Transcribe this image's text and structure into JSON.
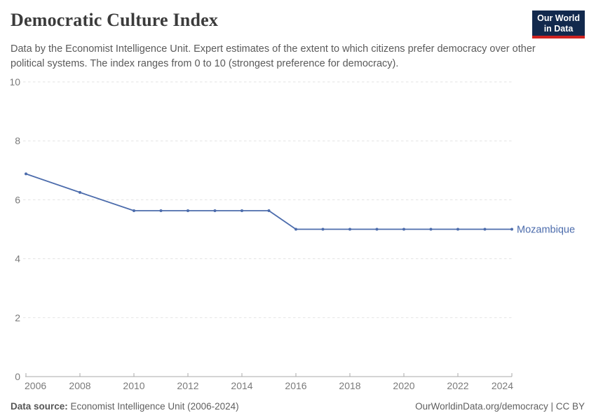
{
  "header": {
    "title": "Democratic Culture Index",
    "subtitle": "Data by the Economist Intelligence Unit. Expert estimates of the extent to which citizens prefer democracy over other political systems. The index ranges from 0 to 10 (strongest preference for democracy).",
    "logo_line1": "Our World",
    "logo_line2": "in Data"
  },
  "chart_data": {
    "type": "line",
    "title": "Democratic Culture Index",
    "xlabel": "",
    "ylabel": "",
    "xlim": [
      2006,
      2024
    ],
    "ylim": [
      0,
      10
    ],
    "x_ticks": [
      2006,
      2008,
      2010,
      2012,
      2014,
      2016,
      2018,
      2020,
      2022,
      2024
    ],
    "y_ticks": [
      0,
      2,
      4,
      6,
      8,
      10
    ],
    "grid": "horizontal-dashed",
    "legend_position": "end-of-line-label",
    "series": [
      {
        "name": "Mozambique",
        "color": "#4c6cac",
        "points": [
          [
            2006,
            6.88
          ],
          [
            2008,
            6.25
          ],
          [
            2010,
            5.63
          ],
          [
            2011,
            5.63
          ],
          [
            2012,
            5.63
          ],
          [
            2013,
            5.63
          ],
          [
            2014,
            5.63
          ],
          [
            2015,
            5.63
          ],
          [
            2016,
            5.0
          ],
          [
            2017,
            5.0
          ],
          [
            2018,
            5.0
          ],
          [
            2019,
            5.0
          ],
          [
            2020,
            5.0
          ],
          [
            2021,
            5.0
          ],
          [
            2022,
            5.0
          ],
          [
            2023,
            5.0
          ],
          [
            2024,
            5.0
          ]
        ]
      }
    ]
  },
  "footer": {
    "source_label": "Data source:",
    "source_text": " Economist Intelligence Unit (2006-2024)",
    "rights": "OurWorldinData.org/democracy | CC BY"
  },
  "colors": {
    "series_blue": "#4c6cac",
    "gridline": "#e3e3e3",
    "axis_line": "#a8a8a8",
    "axis_label": "#7a7a7a",
    "title_text": "#3b3b3b",
    "subtitle_text": "#5a5a5a",
    "logo_navy": "#12294d",
    "logo_red": "#cf2220"
  }
}
